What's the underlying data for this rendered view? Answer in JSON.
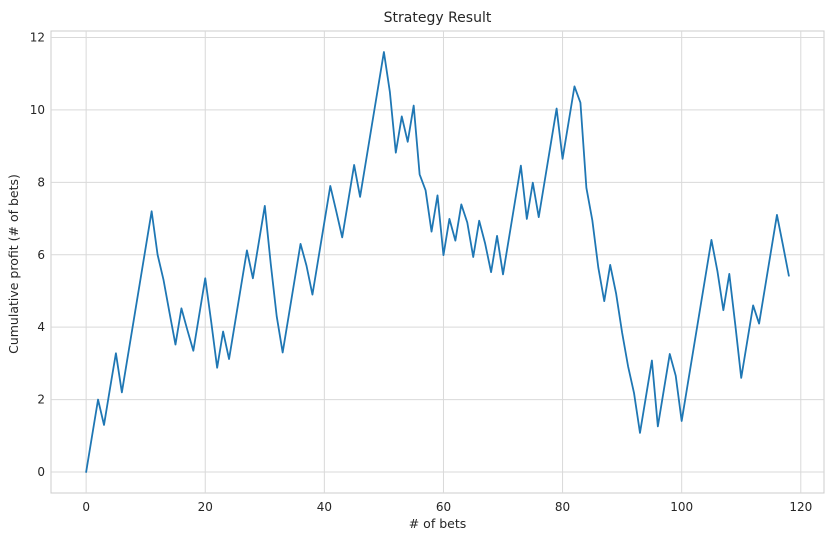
{
  "chart_data": {
    "type": "line",
    "title": "Strategy Result",
    "xlabel": "# of bets",
    "ylabel": "Cumulative profit (# of bets)",
    "xlim": [
      -5.9,
      123.9
    ],
    "ylim": [
      -0.58,
      12.18
    ],
    "xticks": [
      0,
      20,
      40,
      60,
      80,
      100,
      120
    ],
    "yticks": [
      0,
      2,
      4,
      6,
      8,
      10,
      12
    ],
    "grid": true,
    "series": [
      {
        "color": "#1f77b4",
        "x": [
          0,
          1,
          2,
          3,
          4,
          5,
          6,
          7,
          8,
          9,
          10,
          11,
          12,
          13,
          14,
          15,
          16,
          17,
          18,
          19,
          20,
          21,
          22,
          23,
          24,
          25,
          26,
          27,
          28,
          29,
          30,
          31,
          32,
          33,
          34,
          35,
          36,
          37,
          38,
          39,
          40,
          41,
          42,
          43,
          44,
          45,
          46,
          47,
          48,
          49,
          50,
          51,
          52,
          53,
          54,
          55,
          56,
          57,
          58,
          59,
          60,
          61,
          62,
          63,
          64,
          65,
          66,
          67,
          68,
          69,
          70,
          71,
          72,
          73,
          74,
          75,
          76,
          77,
          78,
          79,
          80,
          81,
          82,
          83,
          84,
          85,
          86,
          87,
          88,
          89,
          90,
          91,
          92,
          93,
          94,
          95,
          96,
          97,
          98,
          99,
          100,
          101,
          102,
          103,
          104,
          105,
          106,
          107,
          108,
          109,
          110,
          111,
          112,
          113,
          114,
          115,
          116,
          117,
          118
        ],
        "y": [
          0,
          1,
          2,
          1.3,
          2.3,
          3.28,
          2.2,
          3.2,
          4.2,
          5.2,
          6.2,
          7.2,
          6,
          5.3,
          4.4,
          3.52,
          4.52,
          3.92,
          3.35,
          4.35,
          5.35,
          4.15,
          2.88,
          3.88,
          3.12,
          4.12,
          5.12,
          6.12,
          5.35,
          6.35,
          7.35,
          5.75,
          4.3,
          3.3,
          4.3,
          5.3,
          6.3,
          5.7,
          4.9,
          5.9,
          6.9,
          7.9,
          7.2,
          6.48,
          7.48,
          8.48,
          7.6,
          8.6,
          9.6,
          10.6,
          11.6,
          10.5,
          8.82,
          9.82,
          9.12,
          10.12,
          8.22,
          7.78,
          6.64,
          7.64,
          5.99,
          6.99,
          6.39,
          7.39,
          6.89,
          5.94,
          6.94,
          6.31,
          5.52,
          6.52,
          5.46,
          6.46,
          7.46,
          8.46,
          6.99,
          7.99,
          7.04,
          8.04,
          9.04,
          10.04,
          8.65,
          9.65,
          10.65,
          10.2,
          7.85,
          6.95,
          5.65,
          4.72,
          5.72,
          4.92,
          3.85,
          2.92,
          2.18,
          1.08,
          2.08,
          3.08,
          1.26,
          2.26,
          3.26,
          2.66,
          1.41,
          2.41,
          3.41,
          4.41,
          5.41,
          6.41,
          5.55,
          4.47,
          5.47,
          4.07,
          2.6,
          3.6,
          4.6,
          4.1,
          5.1,
          6.1,
          7.1,
          6.27,
          5.42
        ]
      }
    ]
  }
}
